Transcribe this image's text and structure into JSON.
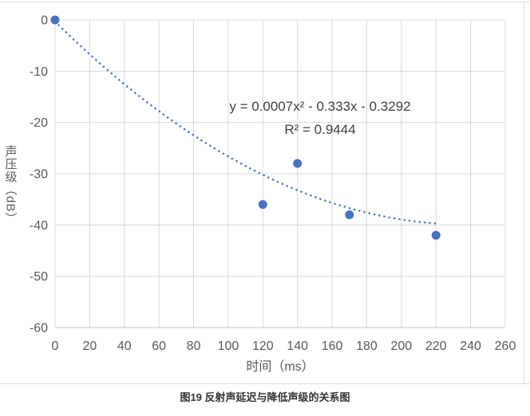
{
  "figure": {
    "caption": "图19 反射声延迟与降低声级的关系图"
  },
  "chart_data": {
    "type": "scatter",
    "title": "",
    "xlabel": "时间（ms）",
    "ylabel": "声压级（dB）",
    "xlim": [
      0,
      260
    ],
    "ylim": [
      -60,
      0
    ],
    "xticks": [
      0,
      20,
      40,
      60,
      80,
      100,
      120,
      140,
      160,
      180,
      200,
      220,
      240,
      260
    ],
    "yticks": [
      0,
      -10,
      -20,
      -30,
      -40,
      -50,
      -60
    ],
    "grid": true,
    "legend_position": "none",
    "points": [
      {
        "x": 0,
        "y": 0
      },
      {
        "x": 120,
        "y": -36
      },
      {
        "x": 140,
        "y": -28
      },
      {
        "x": 170,
        "y": -38
      },
      {
        "x": 220,
        "y": -42
      }
    ],
    "trendline": {
      "kind": "polynomial-degree-2",
      "coefficients": {
        "a": 0.0007,
        "b": -0.333,
        "c": -0.3292
      },
      "x_range": [
        0,
        221
      ],
      "line_style": "dotted",
      "equation_label": "y = 0.0007x² - 0.333x - 0.3292",
      "r_squared_label": "R² = 0.9444"
    },
    "colors": {
      "marker": "#4472C4",
      "trendline": "#4472C4",
      "gridline": "#D9D9D9",
      "axis_line": "#C6C6C6",
      "tick_label": "#595959",
      "axis_title": "#595959",
      "annotation": "#3F3F3F",
      "caption": "#333333",
      "frame_border": "#DCDCDC"
    }
  }
}
